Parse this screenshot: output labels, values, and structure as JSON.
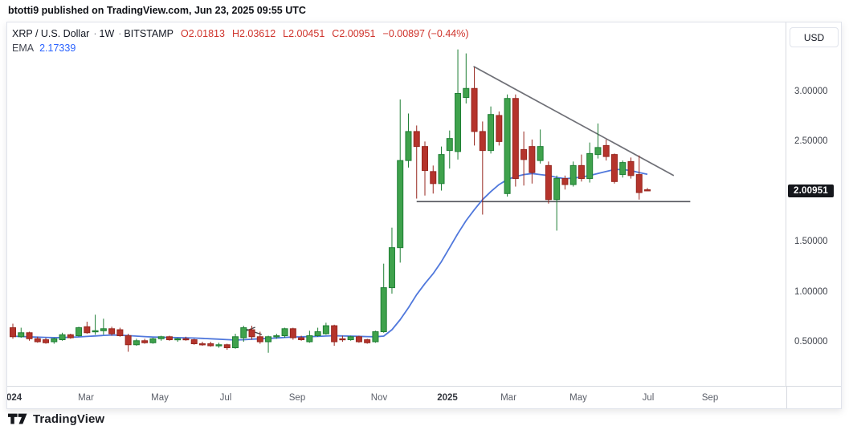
{
  "page": {
    "published_line": "btotti9 published on TradingView.com, Jun 23, 2025 09:55 UTC",
    "watermark": "TradingView"
  },
  "chart": {
    "legend": {
      "symbol": "XRP / U.S. Dollar",
      "sep1": "·",
      "interval": "1W",
      "sep2": "·",
      "exchange": "BITSTAMP",
      "open": "O2.01813",
      "high": "H2.03612",
      "low": "L2.00451",
      "close": "C2.00951",
      "change": "−0.00897 (−0.44%)",
      "indicator_name": "EMA",
      "indicator_value": "2.17339"
    },
    "y_axis": {
      "currency_button": "USD",
      "ticks": [
        {
          "label": "3.00000",
          "price": 3.0
        },
        {
          "label": "2.50000",
          "price": 2.5
        },
        {
          "label": "1.50000",
          "price": 1.5
        },
        {
          "label": "1.00000",
          "price": 1.0
        },
        {
          "label": "0.50000",
          "price": 0.5
        }
      ],
      "last_price_label": "2.00951",
      "last_price": 2.00951
    },
    "x_axis": {
      "labels": [
        {
          "text": "024",
          "x": 8,
          "year": true,
          "clipped": true
        },
        {
          "text": "Mar",
          "x": 107
        },
        {
          "text": "May",
          "x": 199
        },
        {
          "text": "Jul",
          "x": 281
        },
        {
          "text": "Sep",
          "x": 370
        },
        {
          "text": "Nov",
          "x": 472
        },
        {
          "text": "2025",
          "x": 557,
          "year": true
        },
        {
          "text": "Mar",
          "x": 633
        },
        {
          "text": "May",
          "x": 720
        },
        {
          "text": "Jul",
          "x": 807
        },
        {
          "text": "Sep",
          "x": 884
        }
      ]
    }
  },
  "chart_data": {
    "type": "candlestick",
    "title": "XRP / U.S. Dollar",
    "interval": "1W",
    "exchange": "BITSTAMP",
    "x_range": "Jan 2024 – Jun 2025, weekly candles",
    "y_axis_prices": [
      3.0,
      2.5,
      2.0,
      1.5,
      1.0,
      0.5
    ],
    "grid": false,
    "legend_position": "top-left",
    "candles_ohlc": [
      [
        0.64,
        0.68,
        0.53,
        0.55
      ],
      [
        0.55,
        0.64,
        0.54,
        0.59
      ],
      [
        0.59,
        0.6,
        0.51,
        0.53
      ],
      [
        0.53,
        0.55,
        0.49,
        0.5
      ],
      [
        0.52,
        0.54,
        0.48,
        0.49
      ],
      [
        0.5,
        0.54,
        0.48,
        0.53
      ],
      [
        0.52,
        0.59,
        0.51,
        0.57
      ],
      [
        0.57,
        0.58,
        0.53,
        0.54
      ],
      [
        0.56,
        0.65,
        0.55,
        0.64
      ],
      [
        0.65,
        0.7,
        0.58,
        0.59
      ],
      [
        0.6,
        0.77,
        0.57,
        0.61
      ],
      [
        0.61,
        0.73,
        0.57,
        0.63
      ],
      [
        0.63,
        0.65,
        0.56,
        0.58
      ],
      [
        0.62,
        0.64,
        0.55,
        0.56
      ],
      [
        0.56,
        0.58,
        0.4,
        0.47
      ],
      [
        0.47,
        0.53,
        0.46,
        0.51
      ],
      [
        0.51,
        0.53,
        0.48,
        0.49
      ],
      [
        0.49,
        0.54,
        0.48,
        0.53
      ],
      [
        0.53,
        0.56,
        0.51,
        0.55
      ],
      [
        0.55,
        0.56,
        0.51,
        0.52
      ],
      [
        0.52,
        0.54,
        0.5,
        0.53
      ],
      [
        0.53,
        0.55,
        0.51,
        0.52
      ],
      [
        0.52,
        0.53,
        0.47,
        0.48
      ],
      [
        0.48,
        0.5,
        0.46,
        0.47
      ],
      [
        0.48,
        0.5,
        0.45,
        0.46
      ],
      [
        0.46,
        0.49,
        0.44,
        0.47
      ],
      [
        0.47,
        0.48,
        0.42,
        0.44
      ],
      [
        0.44,
        0.58,
        0.43,
        0.55
      ],
      [
        0.54,
        0.66,
        0.5,
        0.64
      ],
      [
        0.62,
        0.66,
        0.52,
        0.55
      ],
      [
        0.55,
        0.6,
        0.48,
        0.5
      ],
      [
        0.5,
        0.56,
        0.39,
        0.55
      ],
      [
        0.55,
        0.58,
        0.53,
        0.56
      ],
      [
        0.56,
        0.64,
        0.54,
        0.63
      ],
      [
        0.63,
        0.64,
        0.52,
        0.54
      ],
      [
        0.54,
        0.56,
        0.51,
        0.52
      ],
      [
        0.5,
        0.61,
        0.49,
        0.56
      ],
      [
        0.56,
        0.64,
        0.55,
        0.6
      ],
      [
        0.58,
        0.69,
        0.57,
        0.66
      ],
      [
        0.66,
        0.67,
        0.46,
        0.5
      ],
      [
        0.53,
        0.56,
        0.5,
        0.52
      ],
      [
        0.52,
        0.56,
        0.51,
        0.55
      ],
      [
        0.55,
        0.56,
        0.49,
        0.5
      ],
      [
        0.52,
        0.53,
        0.48,
        0.49
      ],
      [
        0.5,
        0.61,
        0.49,
        0.6
      ],
      [
        0.6,
        1.28,
        0.59,
        1.04
      ],
      [
        1.04,
        1.64,
        0.98,
        1.44
      ],
      [
        1.44,
        2.92,
        1.29,
        2.31
      ],
      [
        2.31,
        2.78,
        2.24,
        2.6
      ],
      [
        2.6,
        2.66,
        1.93,
        2.45
      ],
      [
        2.45,
        2.5,
        1.96,
        2.21
      ],
      [
        2.2,
        2.26,
        1.98,
        2.08
      ],
      [
        2.08,
        2.45,
        2.01,
        2.37
      ],
      [
        2.41,
        2.61,
        2.23,
        2.53
      ],
      [
        2.4,
        3.42,
        2.32,
        2.98
      ],
      [
        2.94,
        3.38,
        2.88,
        3.03
      ],
      [
        3.03,
        3.24,
        2.46,
        2.6
      ],
      [
        2.6,
        2.7,
        1.77,
        2.41
      ],
      [
        2.41,
        2.85,
        2.38,
        2.77
      ],
      [
        2.76,
        2.8,
        2.46,
        2.5
      ],
      [
        1.98,
        2.97,
        1.95,
        2.93
      ],
      [
        2.93,
        2.97,
        2.05,
        2.13
      ],
      [
        2.42,
        2.6,
        2.06,
        2.32
      ],
      [
        2.45,
        2.52,
        2.08,
        2.19
      ],
      [
        2.31,
        2.62,
        2.28,
        2.45
      ],
      [
        2.26,
        2.3,
        1.88,
        1.92
      ],
      [
        1.92,
        2.16,
        1.61,
        2.13
      ],
      [
        2.13,
        2.16,
        2.02,
        2.07
      ],
      [
        2.07,
        2.3,
        2.05,
        2.26
      ],
      [
        2.26,
        2.37,
        2.1,
        2.13
      ],
      [
        2.13,
        2.49,
        2.09,
        2.38
      ],
      [
        2.37,
        2.68,
        2.33,
        2.44
      ],
      [
        2.46,
        2.52,
        2.31,
        2.35
      ],
      [
        2.37,
        2.38,
        2.08,
        2.1
      ],
      [
        2.17,
        2.31,
        2.14,
        2.29
      ],
      [
        2.3,
        2.34,
        2.13,
        2.16
      ],
      [
        2.17,
        2.36,
        1.92,
        1.99
      ],
      [
        2.018,
        2.036,
        2.004,
        2.01
      ]
    ],
    "ema": {
      "name": "EMA",
      "last_value": 2.17339,
      "values": [
        0.555,
        0.552,
        0.549,
        0.546,
        0.543,
        0.541,
        0.542,
        0.545,
        0.548,
        0.553,
        0.558,
        0.563,
        0.567,
        0.566,
        0.561,
        0.556,
        0.551,
        0.547,
        0.545,
        0.543,
        0.541,
        0.539,
        0.537,
        0.534,
        0.53,
        0.526,
        0.521,
        0.517,
        0.52,
        0.526,
        0.53,
        0.533,
        0.537,
        0.543,
        0.547,
        0.549,
        0.551,
        0.553,
        0.557,
        0.56,
        0.558,
        0.556,
        0.554,
        0.551,
        0.55,
        0.556,
        0.62,
        0.72,
        0.84,
        0.97,
        1.08,
        1.18,
        1.3,
        1.44,
        1.58,
        1.71,
        1.82,
        1.92,
        2.0,
        2.07,
        2.12,
        2.15,
        2.17,
        2.18,
        2.17,
        2.16,
        2.14,
        2.13,
        2.135,
        2.145,
        2.16,
        2.18,
        2.2,
        2.22,
        2.22,
        2.21,
        2.19,
        2.173
      ]
    },
    "annotations": {
      "descending_trendline": {
        "i1": 55.9,
        "p1": 3.25,
        "i2": 80.2,
        "p2": 2.16
      },
      "support_line": {
        "i1": 49.0,
        "i2": 82.2,
        "p": 1.9
      },
      "zigzag_segments": [
        {
          "i1": 27.9,
          "p1": 0.636,
          "i2": 30.2,
          "p2": 0.572
        },
        {
          "i1": 27.9,
          "p1": 0.596,
          "i2": 29.4,
          "p2": 0.644
        }
      ]
    },
    "colors": {
      "up_fill": "#3fa24c",
      "up_border": "#1e7e34",
      "down_fill": "#b5342c",
      "down_border": "#97271f",
      "ema_line": "#5078dc",
      "trendline": "#6f7077",
      "support_line": "#53555c",
      "badge_bg": "#15171c",
      "ohlc_text": "#cf342c",
      "indicator_text": "#2962ff"
    }
  }
}
